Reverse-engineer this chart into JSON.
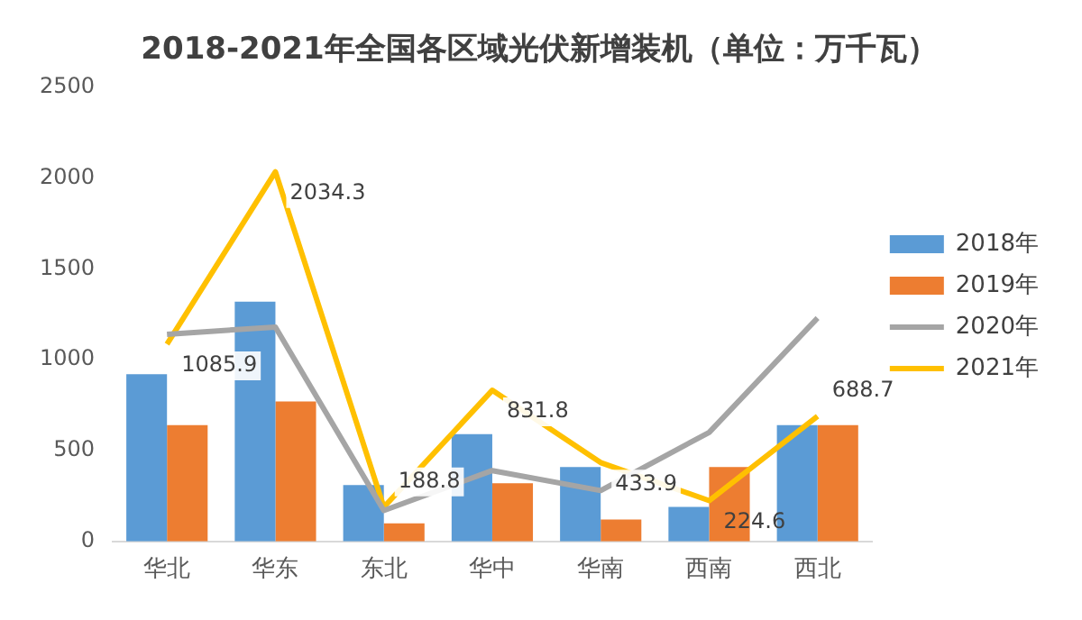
{
  "chart_data": {
    "type": "bar",
    "title": "2018-2021年全国各区域光伏新增装机（单位：万千瓦）",
    "categories": [
      "华北",
      "华东",
      "东北",
      "华中",
      "华南",
      "西南",
      "西北"
    ],
    "series": [
      {
        "name": "2018年",
        "color": "#5b9bd5",
        "values": [
          920,
          1320,
          310,
          590,
          410,
          190,
          640
        ]
      },
      {
        "name": "2019年",
        "color": "#ed7d31",
        "values": [
          640,
          770,
          100,
          320,
          120,
          410,
          640
        ]
      },
      {
        "name": "2020年",
        "type": "line",
        "color": "#a5a5a5",
        "values": [
          1140,
          1180,
          170,
          390,
          280,
          600,
          1230
        ]
      },
      {
        "name": "2021年",
        "type": "line",
        "color": "#ffc000",
        "values": [
          1085.9,
          2034.3,
          188.8,
          831.8,
          433.9,
          224.6,
          688.7
        ],
        "value_labels": [
          "1085.9",
          "2034.3",
          "188.8",
          "831.8",
          "433.9",
          "224.6",
          "688.7"
        ]
      }
    ],
    "ylim": [
      0,
      2500
    ],
    "yticks": [
      0,
      500,
      1000,
      1500,
      2000,
      2500
    ],
    "grid": false,
    "legend": "right",
    "marker": "none",
    "line_style": "solid"
  }
}
